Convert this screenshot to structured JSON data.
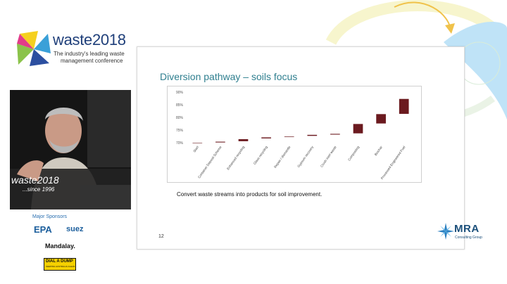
{
  "conference": {
    "brand_word": "waste",
    "brand_year": "2018",
    "tagline_line1": "The industry's leading waste",
    "tagline_line2": "management conference"
  },
  "podium": {
    "brand": "waste2018",
    "since": "...since 1996"
  },
  "sponsors": {
    "title": "Major Sponsors",
    "names": [
      "EPA",
      "suez",
      "Mandalay.",
      "DIAL A DUMP"
    ],
    "dial_sub": "KEEPING AUSTRALIA CLEAN"
  },
  "slide": {
    "title": "Diversion pathway – soils focus",
    "caption": "Convert waste streams into products for soil improvement.",
    "page_number": "12",
    "company_logo": "MRA",
    "company_sub": "Consulting Group"
  },
  "chart_data": {
    "type": "bar",
    "subtype": "waterfall",
    "categories": [
      "Start",
      "Container Deposit Scheme",
      "Enhanced recycling",
      "Glass recycling",
      "Repair / dismantle",
      "Gypsum recovery",
      "Crush inert waste",
      "Composting",
      "Biochar",
      "Processed Engineered Fuel"
    ],
    "y_ticks": [
      "70%",
      "75%",
      "80%",
      "85%",
      "90%"
    ],
    "ylim": [
      70,
      90
    ],
    "bars": [
      {
        "low": 70.0,
        "high": 70.0
      },
      {
        "low": 70.1,
        "high": 70.4
      },
      {
        "low": 70.6,
        "high": 71.4
      },
      {
        "low": 71.7,
        "high": 72.1
      },
      {
        "low": 72.3,
        "high": 72.5
      },
      {
        "low": 72.7,
        "high": 73.1
      },
      {
        "low": 73.2,
        "high": 73.5
      },
      {
        "low": 73.7,
        "high": 77.4
      },
      {
        "low": 77.6,
        "high": 81.3
      },
      {
        "low": 81.4,
        "high": 87.3
      }
    ],
    "bar_color": "#6b1a1f",
    "grid": false,
    "legend": false
  },
  "colors": {
    "title_teal": "#2f7f8f",
    "bar": "#6b1a1f",
    "brand_blue": "#1f3f7a"
  }
}
